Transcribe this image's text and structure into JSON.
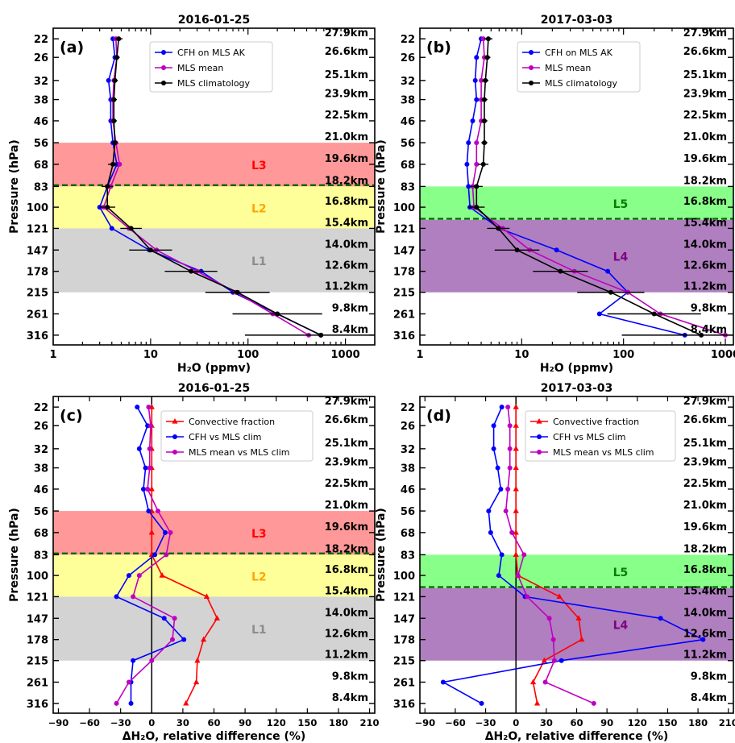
{
  "figure": {
    "pressure_levels": [
      22,
      26,
      32,
      38,
      46,
      56,
      68,
      83,
      100,
      121,
      147,
      178,
      215,
      261,
      316
    ],
    "pressure_labels": [
      "22",
      "26",
      "32",
      "38",
      "46",
      "56",
      "68",
      "83",
      "100",
      "121",
      "147",
      "178",
      "215",
      "261",
      "316"
    ],
    "altitude_labels": [
      "27.9km",
      "26.6km",
      "25.1km",
      "23.9km",
      "22.5km",
      "21.0km",
      "19.6km",
      "18.2km",
      "16.8km",
      "15.4km",
      "14.0km",
      "12.6km",
      "11.2km",
      "9.8km",
      "8.4km"
    ],
    "colors": {
      "blue": "#0000ff",
      "magenta": "#bf00bf",
      "black": "#000000",
      "red": "#ff0000",
      "band_L1": "#d3d3d3",
      "band_L2": "#ffff99",
      "band_L3": "#ff9999",
      "band_L4": "#b07fc0",
      "band_L5": "#88ff88",
      "label_L1": "#8c8c8c",
      "label_L2": "#ffa500",
      "label_L3": "#ff0000",
      "label_L4": "#800080",
      "label_L5": "#008000",
      "tropopause_line": "#006400"
    }
  },
  "chart_data": [
    {
      "panel": "(a)",
      "type": "line",
      "title": "2016-01-25",
      "xlabel": "H₂O (ppmv)",
      "ylabel": "Pressure (hPa)",
      "xscale": "log",
      "xlim": [
        1,
        2000
      ],
      "ylim": [
        20,
        345
      ],
      "yscale": "log-inverted",
      "xticks": [
        1,
        10,
        100,
        1000
      ],
      "xtick_labels": [
        "1",
        "10",
        "100",
        "1000"
      ],
      "legend": {
        "location": "top-center",
        "entries": [
          "CFH on MLS AK",
          "MLS mean",
          "MLS climatology"
        ]
      },
      "bands": [
        {
          "label": "L3",
          "from": 56,
          "to": 83,
          "color_key": "band_L3",
          "label_color_key": "label_L3"
        },
        {
          "label": "L2",
          "from": 83,
          "to": 121,
          "color_key": "band_L2",
          "label_color_key": "label_L2"
        },
        {
          "label": "L1",
          "from": 121,
          "to": 215,
          "color_key": "band_L1",
          "label_color_key": "label_L1"
        }
      ],
      "tropopause": 82,
      "series": [
        {
          "name": "CFH on MLS AK",
          "color_key": "blue",
          "marker": "circle",
          "x": [
            4.1,
            4.3,
            3.7,
            3.9,
            3.9,
            4.1,
            4.5,
            3.6,
            3.0,
            4.0,
            9.7,
            33,
            70,
            200,
            560
          ],
          "y": [
            22,
            26,
            32,
            38,
            46,
            56,
            68,
            83,
            100,
            121,
            147,
            178,
            215,
            261,
            316
          ]
        },
        {
          "name": "MLS mean",
          "color_key": "magenta",
          "marker": "circle",
          "x": [
            4.4,
            4.5,
            4.2,
            4.1,
            4.1,
            4.4,
            4.8,
            3.9,
            3.3,
            6.0,
            11.5,
            30,
            75,
            180,
            420
          ],
          "y": [
            22,
            26,
            32,
            38,
            46,
            56,
            68,
            83,
            100,
            121,
            147,
            178,
            215,
            261,
            316
          ]
        },
        {
          "name": "MLS climatology",
          "color_key": "black",
          "marker": "circle",
          "x": [
            4.7,
            4.5,
            4.3,
            4.2,
            4.2,
            4.3,
            4.1,
            3.6,
            3.6,
            6.3,
            10,
            26,
            78,
            200,
            560
          ],
          "y": [
            22,
            26,
            32,
            38,
            46,
            56,
            68,
            83,
            100,
            121,
            147,
            178,
            215,
            261,
            316
          ],
          "error_log_halfwidth": [
            0.04,
            0.03,
            0.03,
            0.03,
            0.03,
            0.03,
            0.05,
            0.06,
            0.08,
            0.11,
            0.22,
            0.27,
            0.33,
            0.46,
            0.78
          ]
        }
      ]
    },
    {
      "panel": "(b)",
      "type": "line",
      "title": "2017-03-03",
      "xlabel": "H₂O (ppmv)",
      "ylabel": "Pressure (hPa)",
      "xscale": "log",
      "xlim": [
        1,
        1200
      ],
      "ylim": [
        20,
        345
      ],
      "yscale": "log-inverted",
      "xticks": [
        1,
        10,
        100,
        1000
      ],
      "xtick_labels": [
        "1",
        "10",
        "100",
        "1000"
      ],
      "legend": {
        "location": "top-center",
        "entries": [
          "CFH on MLS AK",
          "MLS mean",
          "MLS climatology"
        ]
      },
      "bands": [
        {
          "label": "L5",
          "from": 83,
          "to": 112,
          "color_key": "band_L5",
          "label_color_key": "label_L5"
        },
        {
          "label": "L4",
          "from": 112,
          "to": 215,
          "color_key": "band_L4",
          "label_color_key": "label_L4"
        }
      ],
      "tropopause": 111,
      "series": [
        {
          "name": "CFH on MLS AK",
          "color_key": "blue",
          "marker": "circle",
          "x": [
            4.0,
            3.6,
            3.5,
            3.6,
            3.3,
            3.0,
            2.9,
            3.0,
            3.1,
            6.0,
            22,
            70,
            110,
            58,
            400
          ],
          "y": [
            22,
            26,
            32,
            38,
            46,
            56,
            68,
            83,
            100,
            121,
            147,
            178,
            215,
            261,
            316
          ]
        },
        {
          "name": "MLS mean",
          "color_key": "magenta",
          "marker": "circle",
          "x": [
            4.2,
            4.3,
            4.0,
            4.0,
            4.0,
            3.6,
            3.6,
            3.3,
            3.4,
            6.5,
            12,
            33,
            110,
            230,
            1000
          ],
          "y": [
            22,
            26,
            32,
            38,
            46,
            56,
            68,
            83,
            100,
            121,
            147,
            178,
            215,
            261,
            316
          ]
        },
        {
          "name": "MLS climatology",
          "color_key": "black",
          "marker": "circle",
          "x": [
            4.7,
            4.6,
            4.4,
            4.3,
            4.3,
            4.3,
            4.2,
            3.6,
            3.6,
            5.9,
            9,
            24,
            75,
            200,
            580
          ],
          "y": [
            22,
            26,
            32,
            38,
            46,
            56,
            68,
            83,
            100,
            121,
            147,
            178,
            215,
            261,
            316
          ],
          "error_log_halfwidth": [
            0.04,
            0.03,
            0.03,
            0.03,
            0.03,
            0.03,
            0.05,
            0.06,
            0.08,
            0.11,
            0.22,
            0.27,
            0.33,
            0.46,
            0.78
          ]
        }
      ]
    },
    {
      "panel": "(c)",
      "type": "line",
      "title": "2016-01-25",
      "xlabel": "ΔH₂O, relative difference (%)",
      "ylabel": "Pressure (hPa)",
      "xscale": "linear",
      "xlim": [
        -95,
        215
      ],
      "ylim": [
        20,
        345
      ],
      "yscale": "log-inverted",
      "xticks": [
        -90,
        -60,
        -30,
        0,
        30,
        60,
        90,
        120,
        150,
        180,
        210
      ],
      "xtick_labels": [
        "−90",
        "−60",
        "−30",
        "0",
        "30",
        "60",
        "90",
        "120",
        "150",
        "180",
        "210"
      ],
      "zero_line": 0,
      "legend": {
        "location": "top-right",
        "entries": [
          "Convective fraction",
          "CFH vs MLS clim",
          "MLS mean vs MLS clim"
        ]
      },
      "bands": [
        {
          "label": "L3",
          "from": 56,
          "to": 83,
          "color_key": "band_L3",
          "label_color_key": "label_L3"
        },
        {
          "label": "L2",
          "from": 83,
          "to": 121,
          "color_key": "band_L2",
          "label_color_key": "label_L2"
        },
        {
          "label": "L1",
          "from": 121,
          "to": 215,
          "color_key": "band_L1",
          "label_color_key": "label_L1"
        }
      ],
      "tropopause": 82,
      "series": [
        {
          "name": "Convective fraction",
          "color_key": "red",
          "marker": "triangle",
          "x": [
            0,
            0,
            0,
            0,
            0,
            0,
            0,
            0,
            10,
            53,
            63,
            50,
            44,
            43,
            33
          ],
          "y": [
            22,
            26,
            32,
            38,
            46,
            56,
            68,
            83,
            100,
            121,
            147,
            178,
            215,
            261,
            316
          ]
        },
        {
          "name": "CFH vs MLS clim",
          "color_key": "blue",
          "marker": "circle",
          "x": [
            -14,
            -4,
            -12,
            -6,
            -8,
            -3,
            13,
            3,
            -22,
            -34,
            12,
            31,
            -18,
            -20,
            -20
          ],
          "y": [
            22,
            26,
            32,
            38,
            46,
            56,
            68,
            83,
            100,
            121,
            147,
            178,
            215,
            261,
            316
          ]
        },
        {
          "name": "MLS mean vs MLS clim",
          "color_key": "magenta",
          "marker": "circle",
          "x": [
            -3,
            -1,
            -2,
            -2,
            -4,
            6,
            18,
            14,
            -12,
            -18,
            22,
            20,
            0,
            -22,
            -34
          ],
          "y": [
            22,
            26,
            32,
            38,
            46,
            56,
            68,
            83,
            100,
            121,
            147,
            178,
            215,
            261,
            316
          ]
        }
      ]
    },
    {
      "panel": "(d)",
      "type": "line",
      "title": "2017-03-03",
      "xlabel": "ΔH₂O, relative difference (%)",
      "ylabel": "Pressure (hPa)",
      "xscale": "linear",
      "xlim": [
        -95,
        215
      ],
      "ylim": [
        20,
        345
      ],
      "yscale": "log-inverted",
      "xticks": [
        -90,
        -60,
        -30,
        0,
        30,
        60,
        90,
        120,
        150,
        180,
        210
      ],
      "xtick_labels": [
        "−90",
        "−60",
        "−30",
        "0",
        "30",
        "60",
        "90",
        "120",
        "150",
        "180",
        "210"
      ],
      "zero_line": 0,
      "legend": {
        "location": "top-center",
        "entries": [
          "Convective fraction",
          "CFH vs MLS clim",
          "MLS mean vs MLS clim"
        ]
      },
      "bands": [
        {
          "label": "L5",
          "from": 83,
          "to": 112,
          "color_key": "band_L5",
          "label_color_key": "label_L5"
        },
        {
          "label": "L4",
          "from": 112,
          "to": 215,
          "color_key": "band_L4",
          "label_color_key": "label_L4"
        }
      ],
      "tropopause": 111,
      "series": [
        {
          "name": "Convective fraction",
          "color_key": "red",
          "marker": "triangle",
          "x": [
            0,
            0,
            0,
            0,
            0,
            0,
            0,
            0,
            2,
            43,
            62,
            65,
            28,
            17,
            21
          ],
          "y": [
            22,
            26,
            32,
            38,
            46,
            56,
            68,
            83,
            100,
            121,
            147,
            178,
            215,
            261,
            316
          ]
        },
        {
          "name": "CFH vs MLS clim",
          "color_key": "blue",
          "marker": "circle",
          "x": [
            -14,
            -22,
            -22,
            -18,
            -15,
            -27,
            -25,
            -14,
            -17,
            9,
            143,
            185,
            45,
            -72,
            -34
          ],
          "y": [
            22,
            26,
            32,
            38,
            46,
            56,
            68,
            83,
            100,
            121,
            147,
            178,
            215,
            261,
            316
          ]
        },
        {
          "name": "MLS mean vs MLS clim",
          "color_key": "magenta",
          "marker": "circle",
          "x": [
            -8,
            -6,
            -6,
            -6,
            -8,
            -10,
            -4,
            8,
            2,
            11,
            33,
            37,
            38,
            29,
            77
          ],
          "y": [
            22,
            26,
            32,
            38,
            46,
            56,
            68,
            83,
            100,
            121,
            147,
            178,
            215,
            261,
            316
          ]
        }
      ]
    }
  ]
}
